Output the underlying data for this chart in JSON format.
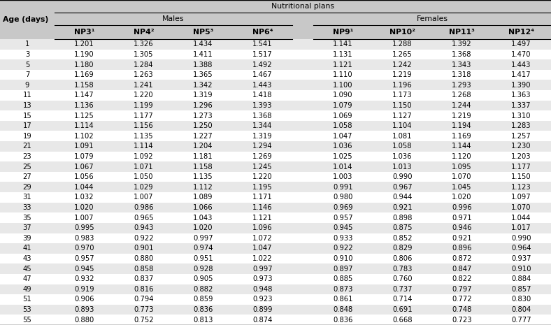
{
  "title_row1": "Nutritional plans",
  "title_col": "Age (days)",
  "group1_label": "Males",
  "group2_label": "Females",
  "col_headers": [
    "NP3¹",
    "NP4²",
    "NP5³",
    "NP6⁴",
    "NP9¹",
    "NP10²",
    "NP11³",
    "NP12⁴"
  ],
  "ages": [
    1,
    3,
    5,
    7,
    9,
    11,
    13,
    15,
    17,
    19,
    21,
    23,
    25,
    27,
    29,
    31,
    33,
    35,
    37,
    39,
    41,
    43,
    45,
    47,
    49,
    51,
    53,
    55
  ],
  "data": [
    [
      1.201,
      1.326,
      1.434,
      1.541,
      1.141,
      1.288,
      1.392,
      1.497
    ],
    [
      1.19,
      1.305,
      1.411,
      1.517,
      1.131,
      1.265,
      1.368,
      1.47
    ],
    [
      1.18,
      1.284,
      1.388,
      1.492,
      1.121,
      1.242,
      1.343,
      1.443
    ],
    [
      1.169,
      1.263,
      1.365,
      1.467,
      1.11,
      1.219,
      1.318,
      1.417
    ],
    [
      1.158,
      1.241,
      1.342,
      1.443,
      1.1,
      1.196,
      1.293,
      1.39
    ],
    [
      1.147,
      1.22,
      1.319,
      1.418,
      1.09,
      1.173,
      1.268,
      1.363
    ],
    [
      1.136,
      1.199,
      1.296,
      1.393,
      1.079,
      1.15,
      1.244,
      1.337
    ],
    [
      1.125,
      1.177,
      1.273,
      1.368,
      1.069,
      1.127,
      1.219,
      1.31
    ],
    [
      1.114,
      1.156,
      1.25,
      1.344,
      1.058,
      1.104,
      1.194,
      1.283
    ],
    [
      1.102,
      1.135,
      1.227,
      1.319,
      1.047,
      1.081,
      1.169,
      1.257
    ],
    [
      1.091,
      1.114,
      1.204,
      1.294,
      1.036,
      1.058,
      1.144,
      1.23
    ],
    [
      1.079,
      1.092,
      1.181,
      1.269,
      1.025,
      1.036,
      1.12,
      1.203
    ],
    [
      1.067,
      1.071,
      1.158,
      1.245,
      1.014,
      1.013,
      1.095,
      1.177
    ],
    [
      1.056,
      1.05,
      1.135,
      1.22,
      1.003,
      0.99,
      1.07,
      1.15
    ],
    [
      1.044,
      1.029,
      1.112,
      1.195,
      0.991,
      0.967,
      1.045,
      1.123
    ],
    [
      1.032,
      1.007,
      1.089,
      1.171,
      0.98,
      0.944,
      1.02,
      1.097
    ],
    [
      1.02,
      0.986,
      1.066,
      1.146,
      0.969,
      0.921,
      0.996,
      1.07
    ],
    [
      1.007,
      0.965,
      1.043,
      1.121,
      0.957,
      0.898,
      0.971,
      1.044
    ],
    [
      0.995,
      0.943,
      1.02,
      1.096,
      0.945,
      0.875,
      0.946,
      1.017
    ],
    [
      0.983,
      0.922,
      0.997,
      1.072,
      0.933,
      0.852,
      0.921,
      0.99
    ],
    [
      0.97,
      0.901,
      0.974,
      1.047,
      0.922,
      0.829,
      0.896,
      0.964
    ],
    [
      0.957,
      0.88,
      0.951,
      1.022,
      0.91,
      0.806,
      0.872,
      0.937
    ],
    [
      0.945,
      0.858,
      0.928,
      0.997,
      0.897,
      0.783,
      0.847,
      0.91
    ],
    [
      0.932,
      0.837,
      0.905,
      0.973,
      0.885,
      0.76,
      0.822,
      0.884
    ],
    [
      0.919,
      0.816,
      0.882,
      0.948,
      0.873,
      0.737,
      0.797,
      0.857
    ],
    [
      0.906,
      0.794,
      0.859,
      0.923,
      0.861,
      0.714,
      0.772,
      0.83
    ],
    [
      0.893,
      0.773,
      0.836,
      0.899,
      0.848,
      0.691,
      0.748,
      0.804
    ],
    [
      0.88,
      0.752,
      0.813,
      0.874,
      0.836,
      0.668,
      0.723,
      0.777
    ]
  ],
  "bg_header": "#c8c8c8",
  "bg_odd": "#e8e8e8",
  "bg_even": "#ffffff",
  "font_size": 7.2,
  "header_font_size": 7.8,
  "fig_width": 7.88,
  "fig_height": 4.65,
  "dpi": 100
}
